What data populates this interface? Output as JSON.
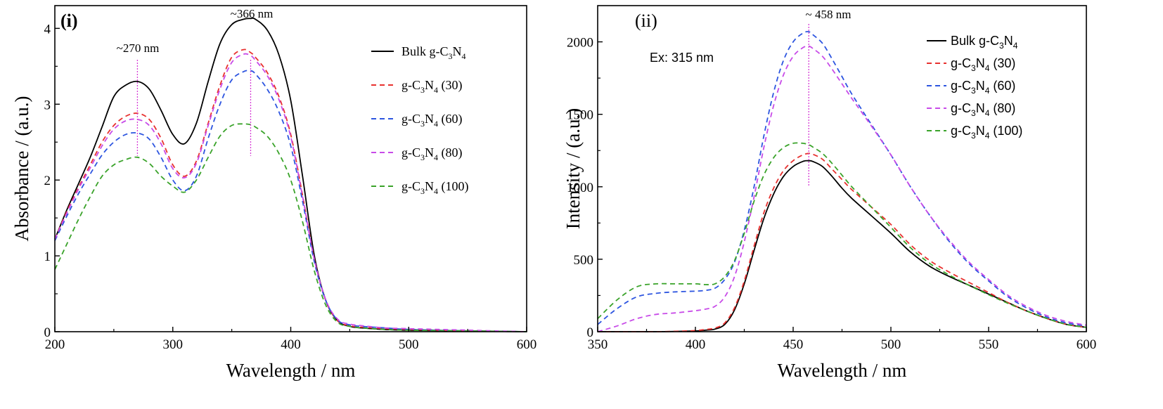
{
  "chart_data": [
    {
      "type": "line",
      "panel_label": "(i)",
      "xlabel": "Wavelength / nm",
      "ylabel": "Absorbance / (a.u.)",
      "xlim": [
        200,
        600
      ],
      "ylim": [
        0,
        4.3
      ],
      "xticks": [
        200,
        300,
        400,
        500,
        600
      ],
      "yticks": [
        0,
        1,
        2,
        3,
        4
      ],
      "annotations": [
        {
          "text": "~270 nm",
          "x": 270
        },
        {
          "text": "~366 nm",
          "x": 366
        }
      ],
      "legend_position": "right",
      "series": [
        {
          "name": "Bulk g-C3N4",
          "legend": {
            "pre": "Bulk g-C",
            "s1": "3",
            "mid": "N",
            "s2": "4",
            "post": ""
          },
          "color": "#000000",
          "dash": "",
          "x": [
            200,
            210,
            220,
            230,
            240,
            250,
            260,
            270,
            280,
            290,
            300,
            310,
            320,
            330,
            340,
            350,
            360,
            366,
            370,
            380,
            390,
            400,
            410,
            420,
            430,
            440,
            450,
            460,
            480,
            500,
            550,
            600
          ],
          "y": [
            1.22,
            1.6,
            1.95,
            2.3,
            2.7,
            3.1,
            3.25,
            3.3,
            3.2,
            2.92,
            2.6,
            2.48,
            2.75,
            3.3,
            3.8,
            4.05,
            4.12,
            4.13,
            4.12,
            3.98,
            3.65,
            3.05,
            2.05,
            1.0,
            0.4,
            0.14,
            0.07,
            0.05,
            0.03,
            0.02,
            0.01,
            0.0
          ]
        },
        {
          "name": "g-C3N4 (30)",
          "legend": {
            "pre": "g-C",
            "s1": "3",
            "mid": "N",
            "s2": "4",
            "post": " (30)"
          },
          "color": "#e8312f",
          "dash": "7,5",
          "x": [
            200,
            210,
            220,
            230,
            240,
            250,
            260,
            270,
            280,
            290,
            300,
            310,
            320,
            330,
            340,
            350,
            360,
            366,
            370,
            380,
            390,
            400,
            410,
            420,
            430,
            440,
            450,
            460,
            480,
            500,
            550,
            600
          ],
          "y": [
            1.22,
            1.58,
            1.9,
            2.2,
            2.5,
            2.72,
            2.84,
            2.88,
            2.8,
            2.55,
            2.2,
            2.05,
            2.25,
            2.75,
            3.25,
            3.62,
            3.72,
            3.68,
            3.62,
            3.42,
            3.1,
            2.6,
            1.8,
            0.95,
            0.4,
            0.14,
            0.08,
            0.06,
            0.04,
            0.03,
            0.01,
            0.0
          ]
        },
        {
          "name": "g-C3N4 (60)",
          "legend": {
            "pre": "g-C",
            "s1": "3",
            "mid": "N",
            "s2": "4",
            "post": " (60)"
          },
          "color": "#2d55e0",
          "dash": "7,5",
          "x": [
            200,
            210,
            220,
            230,
            240,
            250,
            260,
            270,
            280,
            290,
            300,
            310,
            320,
            330,
            340,
            350,
            360,
            366,
            370,
            380,
            390,
            400,
            410,
            420,
            430,
            440,
            450,
            460,
            480,
            500,
            550,
            600
          ],
          "y": [
            1.2,
            1.52,
            1.82,
            2.08,
            2.33,
            2.5,
            2.6,
            2.62,
            2.54,
            2.3,
            2.0,
            1.86,
            2.05,
            2.55,
            3.0,
            3.32,
            3.43,
            3.44,
            3.4,
            3.2,
            2.9,
            2.45,
            1.72,
            0.92,
            0.4,
            0.15,
            0.09,
            0.07,
            0.05,
            0.03,
            0.01,
            0.0
          ]
        },
        {
          "name": "g-C3N4 (80)",
          "legend": {
            "pre": "g-C",
            "s1": "3",
            "mid": "N",
            "s2": "4",
            "post": " (80)"
          },
          "color": "#c84be8",
          "dash": "7,5",
          "x": [
            200,
            210,
            220,
            230,
            240,
            250,
            260,
            270,
            280,
            290,
            300,
            310,
            320,
            330,
            340,
            350,
            360,
            366,
            370,
            380,
            390,
            400,
            410,
            420,
            430,
            440,
            450,
            460,
            480,
            500,
            550,
            600
          ],
          "y": [
            1.22,
            1.56,
            1.88,
            2.16,
            2.45,
            2.67,
            2.78,
            2.8,
            2.72,
            2.48,
            2.15,
            2.03,
            2.22,
            2.72,
            3.2,
            3.55,
            3.66,
            3.64,
            3.58,
            3.38,
            3.06,
            2.57,
            1.78,
            0.95,
            0.41,
            0.16,
            0.1,
            0.08,
            0.05,
            0.04,
            0.02,
            0.0
          ]
        },
        {
          "name": "g-C3N4 (100)",
          "legend": {
            "pre": "g-C",
            "s1": "3",
            "mid": "N",
            "s2": "4",
            "post": " (100)"
          },
          "color": "#3aa32a",
          "dash": "7,5",
          "x": [
            200,
            210,
            220,
            230,
            240,
            250,
            260,
            270,
            280,
            290,
            300,
            310,
            320,
            330,
            340,
            350,
            360,
            366,
            370,
            380,
            390,
            400,
            410,
            420,
            430,
            440,
            450,
            460,
            480,
            500,
            550,
            600
          ],
          "y": [
            0.82,
            1.15,
            1.48,
            1.78,
            2.05,
            2.2,
            2.27,
            2.3,
            2.22,
            2.05,
            1.92,
            1.84,
            2.0,
            2.3,
            2.58,
            2.72,
            2.74,
            2.73,
            2.7,
            2.58,
            2.35,
            2.0,
            1.45,
            0.8,
            0.34,
            0.12,
            0.07,
            0.05,
            0.03,
            0.02,
            0.01,
            0.0
          ]
        }
      ]
    },
    {
      "type": "line",
      "panel_label": "(ii)",
      "xlabel": "Wavelength / nm",
      "ylabel": "Intensity / (a.u.)",
      "xlim": [
        350,
        600
      ],
      "ylim": [
        0,
        2250
      ],
      "xticks": [
        350,
        400,
        450,
        500,
        550,
        600
      ],
      "yticks": [
        0,
        500,
        1000,
        1500,
        2000
      ],
      "annotations": [
        {
          "text": "~ 458 nm",
          "x": 458
        }
      ],
      "note": "Ex: 315 nm",
      "legend_position": "top-right",
      "series": [
        {
          "name": "Bulk g-C3N4",
          "legend": {
            "pre": "Bulk g-C",
            "s1": "3",
            "mid": "N",
            "s2": "4",
            "post": ""
          },
          "color": "#000000",
          "dash": "",
          "x": [
            350,
            360,
            370,
            380,
            390,
            400,
            405,
            410,
            415,
            420,
            425,
            430,
            435,
            440,
            445,
            450,
            455,
            458,
            460,
            465,
            470,
            475,
            480,
            490,
            500,
            510,
            520,
            530,
            540,
            550,
            560,
            570,
            580,
            590,
            600
          ],
          "y": [
            0,
            0,
            0,
            0,
            2,
            5,
            10,
            18,
            50,
            150,
            330,
            560,
            780,
            950,
            1070,
            1140,
            1175,
            1180,
            1175,
            1140,
            1070,
            990,
            920,
            800,
            680,
            550,
            450,
            380,
            320,
            260,
            200,
            140,
            90,
            50,
            30
          ]
        },
        {
          "name": "g-C3N4 (30)",
          "legend": {
            "pre": "g-C",
            "s1": "3",
            "mid": "N",
            "s2": "4",
            "post": " (30)"
          },
          "color": "#e8312f",
          "dash": "7,5",
          "x": [
            350,
            360,
            370,
            380,
            390,
            400,
            405,
            410,
            415,
            420,
            425,
            430,
            435,
            440,
            445,
            450,
            455,
            458,
            460,
            465,
            470,
            475,
            480,
            490,
            500,
            510,
            520,
            530,
            540,
            550,
            560,
            570,
            580,
            590,
            600
          ],
          "y": [
            0,
            0,
            0,
            0,
            3,
            8,
            15,
            25,
            60,
            165,
            350,
            590,
            820,
            990,
            1110,
            1180,
            1220,
            1230,
            1225,
            1190,
            1120,
            1050,
            980,
            860,
            740,
            600,
            490,
            410,
            340,
            270,
            200,
            140,
            90,
            50,
            30
          ]
        },
        {
          "name": "g-C3N4 (60)",
          "legend": {
            "pre": "g-C",
            "s1": "3",
            "mid": "N",
            "s2": "4",
            "post": " (60)"
          },
          "color": "#2d55e0",
          "dash": "7,5",
          "x": [
            350,
            360,
            370,
            380,
            390,
            400,
            405,
            410,
            415,
            420,
            425,
            430,
            435,
            440,
            445,
            450,
            455,
            458,
            460,
            465,
            470,
            475,
            480,
            490,
            500,
            510,
            520,
            530,
            540,
            550,
            560,
            570,
            580,
            590,
            600
          ],
          "y": [
            50,
            160,
            240,
            265,
            275,
            280,
            285,
            300,
            360,
            480,
            700,
            1000,
            1350,
            1650,
            1870,
            2000,
            2060,
            2070,
            2050,
            1990,
            1880,
            1760,
            1640,
            1430,
            1220,
            1000,
            800,
            620,
            470,
            350,
            240,
            160,
            100,
            60,
            40
          ]
        },
        {
          "name": "g-C3N4 (80)",
          "legend": {
            "pre": "g-C",
            "s1": "3",
            "mid": "N",
            "s2": "4",
            "post": " (80)"
          },
          "color": "#c84be8",
          "dash": "7,5",
          "x": [
            350,
            360,
            370,
            380,
            390,
            400,
            405,
            410,
            415,
            420,
            425,
            430,
            435,
            440,
            445,
            450,
            455,
            458,
            460,
            465,
            470,
            475,
            480,
            490,
            500,
            510,
            520,
            530,
            540,
            550,
            560,
            570,
            580,
            590,
            600
          ],
          "y": [
            0,
            40,
            90,
            120,
            130,
            145,
            155,
            175,
            240,
            380,
            620,
            930,
            1270,
            1560,
            1770,
            1900,
            1960,
            1970,
            1955,
            1900,
            1810,
            1710,
            1610,
            1420,
            1220,
            1000,
            800,
            630,
            480,
            360,
            250,
            170,
            110,
            70,
            45
          ]
        },
        {
          "name": "g-C3N4 (100)",
          "legend": {
            "pre": "g-C",
            "s1": "3",
            "mid": "N",
            "s2": "4",
            "post": " (100)"
          },
          "color": "#3aa32a",
          "dash": "7,5",
          "x": [
            350,
            360,
            370,
            380,
            390,
            400,
            405,
            410,
            415,
            420,
            425,
            430,
            435,
            440,
            445,
            450,
            455,
            458,
            460,
            465,
            470,
            475,
            480,
            490,
            500,
            510,
            520,
            530,
            540,
            550,
            560,
            570,
            580,
            590,
            600
          ],
          "y": [
            90,
            220,
            310,
            330,
            330,
            330,
            325,
            330,
            380,
            490,
            680,
            900,
            1080,
            1200,
            1270,
            1300,
            1300,
            1290,
            1275,
            1230,
            1160,
            1080,
            1000,
            860,
            720,
            580,
            470,
            390,
            320,
            255,
            195,
            140,
            90,
            50,
            30
          ]
        }
      ]
    }
  ]
}
